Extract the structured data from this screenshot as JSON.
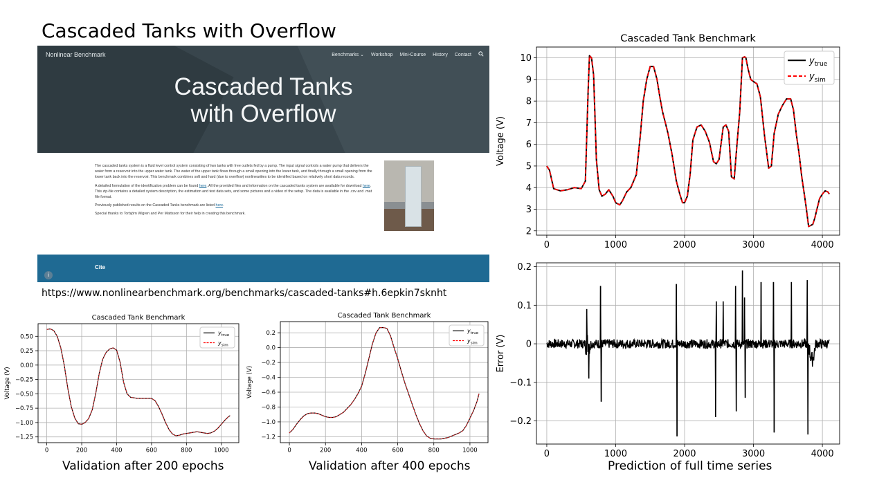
{
  "slide": {
    "title": "Cascaded Tanks with Overflow",
    "url": "https://www.nonlinearbenchmark.org/benchmarks/cascaded-tanks#h.6epkin7sknht",
    "captions": [
      "Validation after 200 epochs",
      "Validation after 400 epochs",
      "Prediction of full time series"
    ]
  },
  "website": {
    "brand": "Nonlinear Benchmark",
    "nav": [
      "Benchmarks ⌄",
      "Workshop",
      "Mini-Course",
      "History",
      "Contact"
    ],
    "search_icon": "search-icon",
    "hero_line1": "Cascaded Tanks",
    "hero_line2": "with Overflow",
    "para1": "The cascaded tanks system is a fluid level control system consisting of two tanks with free outlets fed by a pump. The input signal controls a water pump that delivers the water from a reservoir into the upper water tank. The water of the upper tank flows through a small opening into the lower tank, and finally through a small opening from the lower tank back into the reservoir. This benchmark combines soft and hard (due to overflow) nonlinearities to be identified based on relatively short data records.",
    "para2_pre": "A detailed formulation of the identification problem can be found ",
    "para2_link1": "here",
    "para2_mid": ". All the provided files and information on the cascaded tanks system are available for download ",
    "para2_link2": "here",
    "para2_post": ". This zip-file contains a detailed system description, the estimation and test data sets, and some pictures and a video of the setup. The data is available in the .csv and .mat file format.",
    "para3_pre": "Previously published results on the Cascaded Tanks benchmark are listed ",
    "para3_link": "here",
    "para3_post": ".",
    "para4": "Special thanks to Torbjörn Wigren and Per Mattsson for their help in creating this benchmark.",
    "cite": "Cite"
  },
  "colors": {
    "true": "#000000",
    "sim": "#ff0000",
    "sim_small": "#d62728",
    "hero_bg": "#38454c",
    "cite_bar": "#1f6a93"
  },
  "chart_data": [
    {
      "id": "full",
      "type": "line",
      "title": "Cascaded Tank Benchmark",
      "xlabel": "",
      "ylabel": "Voltage (V)",
      "xlim": [
        -150,
        4250
      ],
      "ylim": [
        1.8,
        10.5
      ],
      "xticks": [
        0,
        1000,
        2000,
        3000,
        4000
      ],
      "yticks": [
        2,
        3,
        4,
        5,
        6,
        7,
        8,
        9,
        10
      ],
      "legend": "top-right",
      "grid": true,
      "series": [
        {
          "name": "y_true",
          "style": "solid",
          "x": [
            0,
            40,
            100,
            200,
            300,
            400,
            500,
            560,
            600,
            620,
            650,
            680,
            720,
            760,
            800,
            850,
            900,
            960,
            1000,
            1060,
            1100,
            1160,
            1220,
            1300,
            1360,
            1400,
            1450,
            1500,
            1550,
            1600,
            1640,
            1680,
            1720,
            1760,
            1820,
            1880,
            1930,
            1970,
            2000,
            2040,
            2080,
            2120,
            2180,
            2240,
            2300,
            2360,
            2420,
            2460,
            2500,
            2560,
            2600,
            2640,
            2680,
            2720,
            2760,
            2800,
            2840,
            2870,
            2890,
            2920,
            2960,
            3000,
            3050,
            3100,
            3160,
            3220,
            3260,
            3300,
            3360,
            3420,
            3480,
            3540,
            3580,
            3620,
            3660,
            3700,
            3760,
            3800,
            3860,
            3890,
            3920,
            3960,
            4000,
            4040,
            4080,
            4100
          ],
          "y": [
            5.0,
            4.8,
            3.95,
            3.85,
            3.9,
            4.0,
            3.95,
            4.3,
            8.5,
            10.1,
            10.0,
            9.2,
            5.3,
            3.9,
            3.6,
            3.7,
            3.9,
            3.6,
            3.3,
            3.2,
            3.4,
            3.8,
            4.0,
            4.6,
            6.5,
            8.0,
            9.0,
            9.6,
            9.6,
            9.0,
            8.2,
            7.5,
            7.0,
            6.5,
            5.5,
            4.3,
            3.7,
            3.3,
            3.3,
            3.6,
            4.6,
            6.2,
            6.8,
            6.9,
            6.6,
            6.1,
            5.2,
            5.1,
            5.3,
            6.8,
            6.9,
            6.6,
            4.5,
            4.4,
            6.0,
            7.5,
            10.0,
            10.05,
            10.0,
            9.5,
            9.0,
            8.9,
            8.8,
            8.2,
            6.4,
            4.9,
            5.0,
            6.5,
            7.4,
            7.8,
            8.1,
            8.1,
            7.6,
            6.5,
            5.6,
            4.5,
            3.2,
            2.2,
            2.3,
            2.6,
            3.0,
            3.5,
            3.7,
            3.85,
            3.8,
            3.7
          ]
        },
        {
          "name": "y_sim",
          "style": "dashed",
          "same_as": "y_true"
        }
      ]
    },
    {
      "id": "error",
      "type": "line",
      "title": "",
      "xlabel": "",
      "ylabel": "Error (V)",
      "xlim": [
        -150,
        4250
      ],
      "ylim": [
        -0.26,
        0.21
      ],
      "xticks": [
        0,
        1000,
        2000,
        3000,
        4000
      ],
      "yticks": [
        -0.2,
        -0.1,
        0.0,
        0.1,
        0.2
      ],
      "grid": true,
      "series": [
        {
          "name": "",
          "style": "solid",
          "noise": {
            "x_range": [
              0,
              4100
            ],
            "spikes": [
              [
                580,
                0.09
              ],
              [
                610,
                -0.09
              ],
              [
                780,
                0.15
              ],
              [
                790,
                -0.15
              ],
              [
                1880,
                0.155
              ],
              [
                1890,
                -0.24
              ],
              [
                2450,
                -0.19
              ],
              [
                2460,
                0.11
              ],
              [
                2560,
                0.11
              ],
              [
                2740,
                0.15
              ],
              [
                2750,
                -0.175
              ],
              [
                2840,
                0.19
              ],
              [
                2870,
                0.12
              ],
              [
                2880,
                -0.14
              ],
              [
                3110,
                0.16
              ],
              [
                3290,
                0.16
              ],
              [
                3300,
                -0.23
              ],
              [
                3550,
                0.16
              ],
              [
                3780,
                0.165
              ],
              [
                3790,
                -0.235
              ]
            ]
          }
        }
      ]
    },
    {
      "id": "val200",
      "type": "line",
      "title": "Cascaded Tank Benchmark",
      "xlabel": "",
      "ylabel": "Voltage (V)",
      "xlim": [
        -50,
        1100
      ],
      "ylim": [
        -1.35,
        0.72
      ],
      "xticks": [
        0,
        200,
        400,
        600,
        800,
        1000
      ],
      "yticks": [
        0.5,
        0.25,
        0.0,
        -0.25,
        -0.5,
        -0.75,
        -1.0,
        -1.25
      ],
      "ytick_labels": [
        "0.50",
        "0.25",
        "0.00",
        "−0.25",
        "−0.50",
        "−0.75",
        "−1.00",
        "−1.25"
      ],
      "legend": "top-right",
      "grid": true,
      "series": [
        {
          "name": "y_true",
          "style": "solid",
          "x": [
            0,
            20,
            40,
            60,
            80,
            100,
            120,
            140,
            160,
            180,
            200,
            220,
            240,
            260,
            280,
            300,
            320,
            340,
            360,
            380,
            400,
            420,
            440,
            460,
            480,
            500,
            520,
            540,
            560,
            580,
            600,
            620,
            640,
            660,
            680,
            700,
            720,
            740,
            760,
            780,
            800,
            820,
            840,
            860,
            880,
            900,
            920,
            940,
            960,
            980,
            1000,
            1020,
            1040,
            1050
          ],
          "y": [
            0.62,
            0.63,
            0.6,
            0.5,
            0.3,
            0.0,
            -0.4,
            -0.72,
            -0.92,
            -1.02,
            -1.03,
            -1.0,
            -0.93,
            -0.78,
            -0.5,
            -0.15,
            0.1,
            0.22,
            0.28,
            0.3,
            0.26,
            0.05,
            -0.3,
            -0.5,
            -0.56,
            -0.57,
            -0.58,
            -0.58,
            -0.58,
            -0.58,
            -0.58,
            -0.62,
            -0.72,
            -0.85,
            -1.0,
            -1.12,
            -1.2,
            -1.23,
            -1.22,
            -1.2,
            -1.19,
            -1.18,
            -1.17,
            -1.16,
            -1.17,
            -1.18,
            -1.19,
            -1.18,
            -1.15,
            -1.1,
            -1.03,
            -0.96,
            -0.9,
            -0.88
          ]
        },
        {
          "name": "y_sim",
          "style": "dashed",
          "same_as": "y_true"
        }
      ]
    },
    {
      "id": "val400",
      "type": "line",
      "title": "Cascaded Tank Benchmark",
      "xlabel": "",
      "ylabel": "Voltage (V)",
      "xlim": [
        -50,
        1100
      ],
      "ylim": [
        -1.28,
        0.35
      ],
      "xticks": [
        0,
        200,
        400,
        600,
        800,
        1000
      ],
      "yticks": [
        0.2,
        0.0,
        -0.2,
        -0.4,
        -0.6,
        -0.8,
        -1.0,
        -1.2
      ],
      "ytick_labels": [
        "0.2",
        "0.0",
        "−0.2",
        "−0.4",
        "−0.6",
        "−0.8",
        "−1.0",
        "−1.2"
      ],
      "legend": "top-right",
      "grid": true,
      "series": [
        {
          "name": "y_true",
          "style": "solid",
          "x": [
            0,
            20,
            40,
            60,
            80,
            100,
            120,
            140,
            160,
            180,
            200,
            220,
            240,
            260,
            280,
            300,
            320,
            340,
            360,
            380,
            400,
            420,
            440,
            460,
            480,
            500,
            520,
            540,
            560,
            580,
            600,
            620,
            640,
            660,
            680,
            700,
            720,
            740,
            760,
            780,
            800,
            820,
            840,
            860,
            880,
            900,
            920,
            940,
            960,
            980,
            1000,
            1020,
            1040,
            1050
          ],
          "y": [
            -1.15,
            -1.1,
            -1.03,
            -0.97,
            -0.92,
            -0.89,
            -0.88,
            -0.88,
            -0.89,
            -0.91,
            -0.93,
            -0.94,
            -0.94,
            -0.93,
            -0.9,
            -0.87,
            -0.82,
            -0.77,
            -0.7,
            -0.62,
            -0.52,
            -0.35,
            -0.15,
            0.05,
            0.2,
            0.27,
            0.27,
            0.26,
            0.16,
            0.0,
            -0.15,
            -0.32,
            -0.48,
            -0.62,
            -0.76,
            -0.9,
            -1.02,
            -1.12,
            -1.19,
            -1.22,
            -1.23,
            -1.23,
            -1.23,
            -1.22,
            -1.21,
            -1.19,
            -1.17,
            -1.15,
            -1.12,
            -1.05,
            -0.95,
            -0.85,
            -0.72,
            -0.62
          ]
        },
        {
          "name": "y_sim",
          "style": "dashed",
          "same_as": "y_true"
        }
      ]
    }
  ]
}
